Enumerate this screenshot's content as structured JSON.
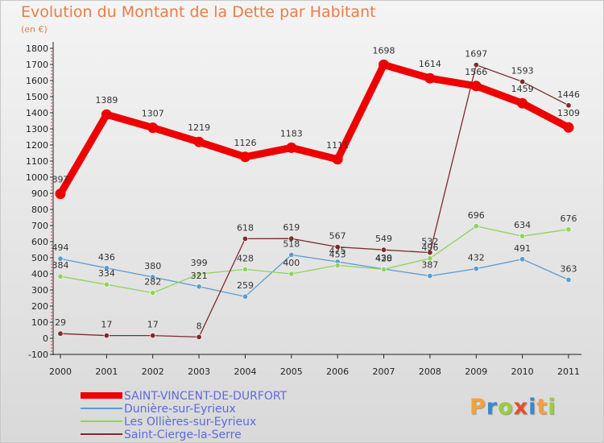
{
  "page": {
    "title": "Evolution du Montant de la Dette par Habitant",
    "subtitle": "(en €)"
  },
  "logo": {
    "letters": [
      "P",
      "r",
      "o",
      "x",
      "i",
      "t",
      "i"
    ],
    "colors": [
      "#f2a23c",
      "#3d88c6",
      "#9acd3c",
      "#e2502a",
      "#3d88c6",
      "#f2a23c",
      "#9acd3c"
    ]
  },
  "chart_data": {
    "type": "line",
    "title": "Evolution du Montant de la Dette par Habitant",
    "ylabel": "(en €)",
    "xlabel": "",
    "ylim": [
      -100,
      1800
    ],
    "yticks": [
      -100,
      0,
      100,
      200,
      300,
      400,
      500,
      600,
      700,
      800,
      900,
      1000,
      1100,
      1200,
      1300,
      1400,
      1500,
      1600,
      1700,
      1800
    ],
    "categories": [
      "2000",
      "2001",
      "2002",
      "2003",
      "2004",
      "2005",
      "2006",
      "2007",
      "2008",
      "2009",
      "2010",
      "2011"
    ],
    "grid": false,
    "legend": "bottom-left",
    "series": [
      {
        "name": "SAINT-VINCENT-DE-DURFORT",
        "values": [
          897,
          1389,
          1307,
          1219,
          1126,
          1183,
          1111,
          1698,
          1614,
          1566,
          1459,
          1309
        ],
        "labels": [
          "897",
          "1389",
          "1307",
          "1219",
          "1126",
          "1183",
          "1111",
          "1698",
          "1614",
          "1566",
          "1459",
          "1309"
        ],
        "color": "#ee0000",
        "emphasis": true
      },
      {
        "name": "Dunière-sur-Eyrieux",
        "values": [
          494,
          436,
          380,
          321,
          259,
          518,
          475,
          430,
          387,
          432,
          491,
          363
        ],
        "labels": [
          "494",
          "436",
          "380",
          "321",
          "259",
          "518",
          "475",
          "430",
          "387",
          "432",
          "491",
          "363"
        ],
        "color": "#5b9bd0"
      },
      {
        "name": "Les Ollières-sur-Eyrieux",
        "values": [
          384,
          334,
          282,
          399,
          428,
          400,
          453,
          428,
          496,
          696,
          634,
          676
        ],
        "labels": [
          "384",
          "334",
          "282",
          "399",
          "428",
          "400",
          "453",
          "428",
          "496",
          "696",
          "634",
          "676"
        ],
        "color": "#8fd45e"
      },
      {
        "name": "Saint-Cierge-la-Serre",
        "values": [
          29,
          17,
          17,
          8,
          618,
          619,
          567,
          549,
          532,
          1697,
          1593,
          1446
        ],
        "labels": [
          "29",
          "17",
          "17",
          "8",
          "618",
          "619",
          "567",
          "549",
          "532",
          "1697",
          "1593",
          "1446"
        ],
        "color": "#7e2c2c"
      }
    ]
  }
}
